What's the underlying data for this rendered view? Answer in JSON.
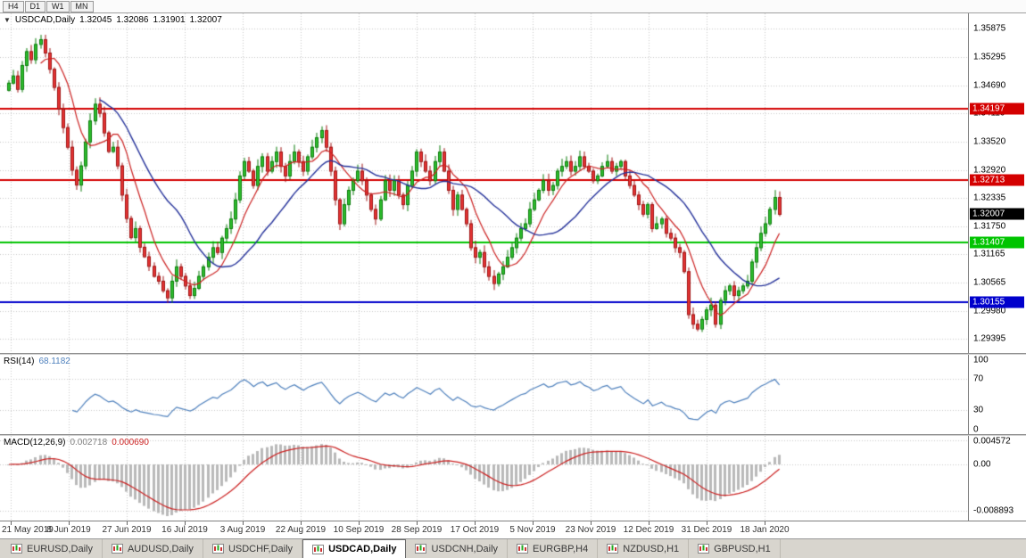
{
  "colors": {
    "up": "#2fbf2f",
    "up_border": "#0b7d0b",
    "down": "#e63434",
    "down_border": "#9e1414",
    "ma_fast": "#cc2222",
    "ma_slow": "#26339b",
    "grid": "#c8c8c8",
    "rsi": "#4f81bd",
    "macd_hist": "#b9b9b9",
    "macd_signal": "#cc2222",
    "last_price_bg": "#000000"
  },
  "toolbar": {
    "timeframes": [
      "H4",
      "D1",
      "W1",
      "MN"
    ]
  },
  "chart_data": {
    "type": "candlestick",
    "symbol": "USDCAD",
    "timeframe": "Daily",
    "legend": {
      "collapse": "▼",
      "title": "USDCAD,Daily",
      "open": "1.32045",
      "high": "1.32086",
      "low": "1.31901",
      "close": "1.32007"
    },
    "ylim": [
      1.291,
      1.362
    ],
    "y_ticks": [
      "1.35875",
      "1.35295",
      "1.34690",
      "1.34110",
      "1.33520",
      "1.32920",
      "1.32335",
      "1.31750",
      "1.31165",
      "1.30565",
      "1.29980",
      "1.29395"
    ],
    "x_ticks": [
      "21 May 2019",
      "8 Jun 2019",
      "27 Jun 2019",
      "16 Jul 2019",
      "3 Aug 2019",
      "22 Aug 2019",
      "10 Sep 2019",
      "28 Sep 2019",
      "17 Oct 2019",
      "5 Nov 2019",
      "23 Nov 2019",
      "12 Dec 2019",
      "31 Dec 2019",
      "18 Jan 2020"
    ],
    "hlines": [
      {
        "price": 1.34197,
        "label": "1.34197",
        "color": "#d40000"
      },
      {
        "price": 1.32713,
        "label": "1.32713",
        "color": "#d40000"
      },
      {
        "price": 1.31407,
        "label": "1.31407",
        "color": "#00c400"
      },
      {
        "price": 1.30155,
        "label": "1.30155",
        "color": "#0000cc"
      }
    ],
    "last_price": {
      "value": 1.32007,
      "label": "1.32007"
    },
    "closes": [
      1.3475,
      1.349,
      1.3462,
      1.3512,
      1.3541,
      1.3524,
      1.3556,
      1.3566,
      1.3538,
      1.3504,
      1.3466,
      1.3421,
      1.3382,
      1.3341,
      1.3293,
      1.3262,
      1.3302,
      1.3352,
      1.3396,
      1.3431,
      1.3412,
      1.3371,
      1.3332,
      1.3341,
      1.3302,
      1.3241,
      1.3192,
      1.3152,
      1.3171,
      1.3132,
      1.3112,
      1.3092,
      1.3071,
      1.3061,
      1.3041,
      1.3026,
      1.3061,
      1.3091,
      1.3071,
      1.3051,
      1.3031,
      1.3046,
      1.3071,
      1.3091,
      1.3111,
      1.3131,
      1.3121,
      1.3151,
      1.3171,
      1.3191,
      1.3231,
      1.3281,
      1.3311,
      1.3291,
      1.3261,
      1.3301,
      1.3321,
      1.3291,
      1.3311,
      1.3331,
      1.3301,
      1.3281,
      1.3311,
      1.3331,
      1.3311,
      1.3291,
      1.3321,
      1.3341,
      1.3361,
      1.3376,
      1.3341,
      1.3291,
      1.3231,
      1.3181,
      1.3221,
      1.3251,
      1.3271,
      1.3291,
      1.3271,
      1.3241,
      1.3211,
      1.3191,
      1.3231,
      1.3271,
      1.3251,
      1.3271,
      1.3241,
      1.3221,
      1.3261,
      1.3291,
      1.3331,
      1.3311,
      1.3291,
      1.3271,
      1.3311,
      1.3331,
      1.3291,
      1.3251,
      1.3211,
      1.3241,
      1.3211,
      1.3181,
      1.3131,
      1.3111,
      1.3121,
      1.3091,
      1.3071,
      1.3056,
      1.3076,
      1.3091,
      1.3111,
      1.3131,
      1.3151,
      1.3171,
      1.3181,
      1.3211,
      1.3231,
      1.3251,
      1.3271,
      1.3251,
      1.3261,
      1.3291,
      1.3301,
      1.3311,
      1.3291,
      1.3301,
      1.3321,
      1.3301,
      1.3291,
      1.3271,
      1.3281,
      1.3301,
      1.3311,
      1.3291,
      1.3301,
      1.3311,
      1.3281,
      1.3261,
      1.3241,
      1.3221,
      1.3201,
      1.3221,
      1.3171,
      1.3181,
      1.3191,
      1.3161,
      1.3151,
      1.3131,
      1.3121,
      1.3081,
      1.2991,
      1.2971,
      1.2961,
      1.2981,
      1.3001,
      1.3011,
      1.2971,
      1.3021,
      1.3041,
      1.3051,
      1.3031,
      1.3041,
      1.3051,
      1.3061,
      1.3101,
      1.3131,
      1.3161,
      1.3181,
      1.3211,
      1.3236,
      1.32007
    ],
    "indicators": {
      "rsi": {
        "name": "RSI(14)",
        "value": "68.1182",
        "period": 14,
        "levels": [
          100,
          70,
          30,
          0
        ],
        "y_tick_labels": [
          "100",
          "70",
          "30",
          "0"
        ],
        "ylim": [
          0,
          100
        ]
      },
      "macd": {
        "name": "MACD(12,26,9)",
        "main_value": "0.002718",
        "signal_value": "0.000690",
        "params": [
          12,
          26,
          9
        ],
        "y_ticks": [
          "0.004572",
          "0.00",
          "-0.008893"
        ]
      }
    }
  },
  "tabs": {
    "active_index": 3,
    "items": [
      {
        "label": "EURUSD,Daily"
      },
      {
        "label": "AUDUSD,Daily"
      },
      {
        "label": "USDCHF,Daily"
      },
      {
        "label": "USDCAD,Daily"
      },
      {
        "label": "USDCNH,Daily"
      },
      {
        "label": "EURGBP,H4"
      },
      {
        "label": "NZDUSD,H1"
      },
      {
        "label": "GBPUSD,H1"
      }
    ]
  }
}
